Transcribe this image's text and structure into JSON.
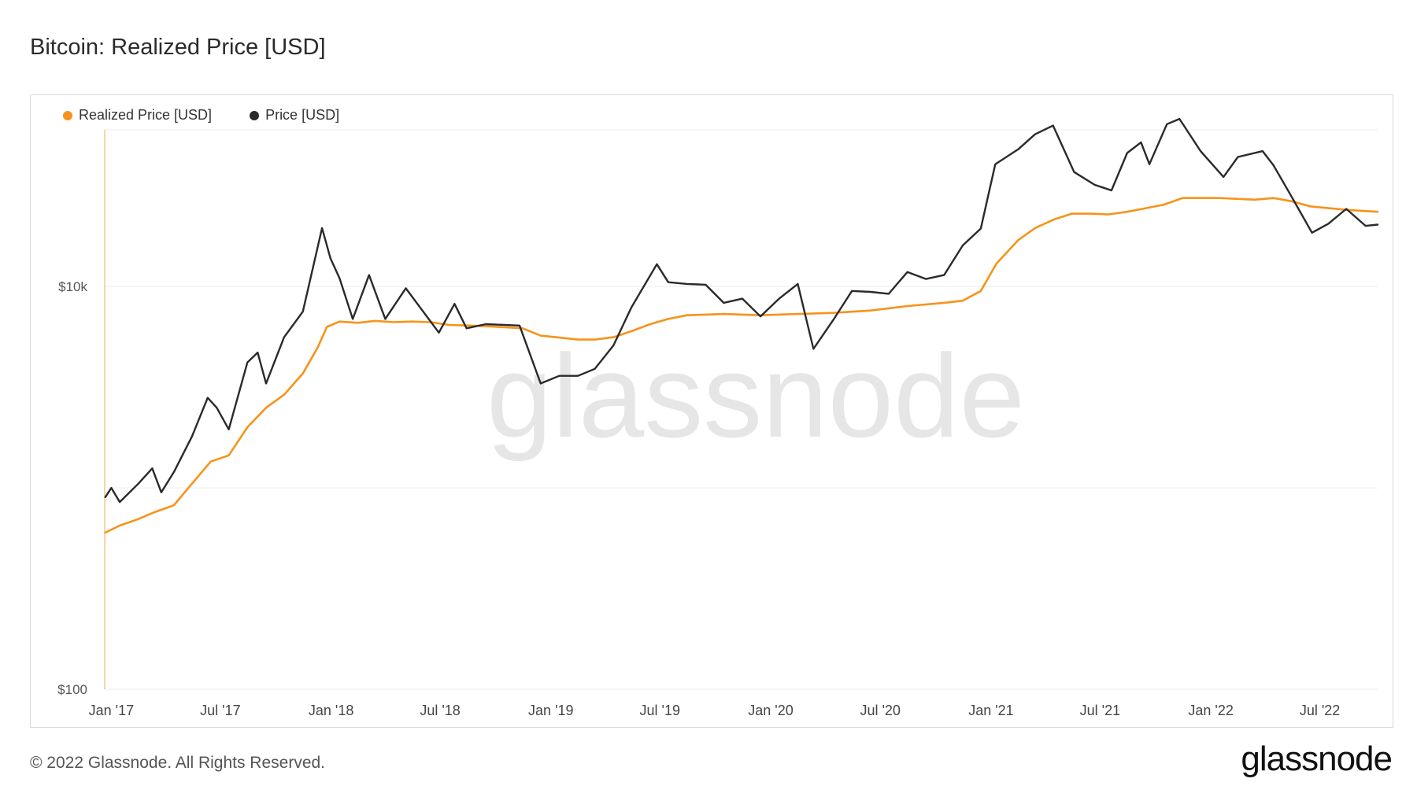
{
  "title": "Bitcoin: Realized Price [USD]",
  "watermark": "glassnode",
  "footer": "© 2022 Glassnode. All Rights Reserved.",
  "brand": "glassnode",
  "colors": {
    "realized": "#f7931a",
    "price": "#2a2a2a",
    "grid": "#eeeeee",
    "axis": "#f3c98a"
  },
  "chart_data": {
    "type": "line",
    "yscale": "log",
    "ylim": [
      100,
      60000
    ],
    "ytick_labels": [
      "$100",
      "$10k"
    ],
    "yticks": [
      100,
      10000
    ],
    "xlim": [
      "2016-12-21",
      "2022-10-05"
    ],
    "x_tick_labels": [
      "Jan '17",
      "Jul '17",
      "Jan '18",
      "Jul '18",
      "Jan '19",
      "Jul '19",
      "Jan '20",
      "Jul '20",
      "Jan '21",
      "Jul '21",
      "Jan '22",
      "Jul '22"
    ],
    "x_ticks": [
      "2017-01-01",
      "2017-07-01",
      "2018-01-01",
      "2018-07-01",
      "2019-01-01",
      "2019-07-01",
      "2020-01-01",
      "2020-07-01",
      "2021-01-01",
      "2021-07-01",
      "2022-01-01",
      "2022-07-01"
    ],
    "legend_position": "top-left",
    "series": [
      {
        "name": "Realized Price [USD]",
        "color": "#f7931a",
        "points": [
          [
            "2016-12-22",
            600
          ],
          [
            "2017-01-15",
            650
          ],
          [
            "2017-02-15",
            700
          ],
          [
            "2017-03-15",
            760
          ],
          [
            "2017-04-15",
            820
          ],
          [
            "2017-05-15",
            1050
          ],
          [
            "2017-06-15",
            1350
          ],
          [
            "2017-07-15",
            1450
          ],
          [
            "2017-08-15",
            2000
          ],
          [
            "2017-09-15",
            2500
          ],
          [
            "2017-10-15",
            2900
          ],
          [
            "2017-11-15",
            3700
          ],
          [
            "2017-12-10",
            5000
          ],
          [
            "2017-12-25",
            6300
          ],
          [
            "2018-01-15",
            6700
          ],
          [
            "2018-02-15",
            6600
          ],
          [
            "2018-03-15",
            6750
          ],
          [
            "2018-04-15",
            6650
          ],
          [
            "2018-05-15",
            6700
          ],
          [
            "2018-06-15",
            6650
          ],
          [
            "2018-07-15",
            6450
          ],
          [
            "2018-09-15",
            6350
          ],
          [
            "2018-11-15",
            6200
          ],
          [
            "2018-12-15",
            5700
          ],
          [
            "2019-02-15",
            5450
          ],
          [
            "2019-03-15",
            5450
          ],
          [
            "2019-04-15",
            5600
          ],
          [
            "2019-05-15",
            6000
          ],
          [
            "2019-06-15",
            6500
          ],
          [
            "2019-07-15",
            6900
          ],
          [
            "2019-08-15",
            7200
          ],
          [
            "2019-10-15",
            7300
          ],
          [
            "2019-12-15",
            7200
          ],
          [
            "2020-02-15",
            7300
          ],
          [
            "2020-04-15",
            7400
          ],
          [
            "2020-06-15",
            7600
          ],
          [
            "2020-08-15",
            8000
          ],
          [
            "2020-10-15",
            8300
          ],
          [
            "2020-11-15",
            8500
          ],
          [
            "2020-12-15",
            9500
          ],
          [
            "2021-01-10",
            13000
          ],
          [
            "2021-02-15",
            17000
          ],
          [
            "2021-03-15",
            19500
          ],
          [
            "2021-04-15",
            21500
          ],
          [
            "2021-05-15",
            23000
          ],
          [
            "2021-06-15",
            23000
          ],
          [
            "2021-07-15",
            22800
          ],
          [
            "2021-08-15",
            23500
          ],
          [
            "2021-09-15",
            24500
          ],
          [
            "2021-10-15",
            25500
          ],
          [
            "2021-11-15",
            27500
          ],
          [
            "2022-01-15",
            27500
          ],
          [
            "2022-03-15",
            27000
          ],
          [
            "2022-04-15",
            27500
          ],
          [
            "2022-05-15",
            26500
          ],
          [
            "2022-06-15",
            25000
          ],
          [
            "2022-08-15",
            24000
          ],
          [
            "2022-10-05",
            23500
          ]
        ]
      },
      {
        "name": "Price [USD]",
        "color": "#2a2a2a",
        "points": [
          [
            "2016-12-22",
            900
          ],
          [
            "2017-01-01",
            1000
          ],
          [
            "2017-01-15",
            850
          ],
          [
            "2017-02-15",
            1050
          ],
          [
            "2017-03-10",
            1250
          ],
          [
            "2017-03-25",
            950
          ],
          [
            "2017-04-15",
            1200
          ],
          [
            "2017-05-15",
            1800
          ],
          [
            "2017-06-10",
            2800
          ],
          [
            "2017-06-25",
            2500
          ],
          [
            "2017-07-15",
            1950
          ],
          [
            "2017-08-15",
            4200
          ],
          [
            "2017-09-01",
            4700
          ],
          [
            "2017-09-15",
            3300
          ],
          [
            "2017-10-15",
            5600
          ],
          [
            "2017-11-15",
            7500
          ],
          [
            "2017-12-17",
            19500
          ],
          [
            "2017-12-31",
            13800
          ],
          [
            "2018-01-15",
            11000
          ],
          [
            "2018-02-06",
            6900
          ],
          [
            "2018-03-05",
            11400
          ],
          [
            "2018-04-01",
            6900
          ],
          [
            "2018-05-05",
            9800
          ],
          [
            "2018-06-29",
            5900
          ],
          [
            "2018-07-25",
            8200
          ],
          [
            "2018-08-14",
            6200
          ],
          [
            "2018-09-15",
            6500
          ],
          [
            "2018-11-10",
            6400
          ],
          [
            "2018-12-15",
            3300
          ],
          [
            "2019-01-15",
            3600
          ],
          [
            "2019-02-15",
            3600
          ],
          [
            "2019-03-15",
            3900
          ],
          [
            "2019-04-15",
            5100
          ],
          [
            "2019-05-15",
            7900
          ],
          [
            "2019-06-26",
            12900
          ],
          [
            "2019-07-15",
            10500
          ],
          [
            "2019-08-15",
            10300
          ],
          [
            "2019-09-15",
            10200
          ],
          [
            "2019-10-15",
            8300
          ],
          [
            "2019-11-15",
            8700
          ],
          [
            "2019-12-15",
            7100
          ],
          [
            "2020-01-15",
            8700
          ],
          [
            "2020-02-15",
            10300
          ],
          [
            "2020-03-12",
            4900
          ],
          [
            "2020-04-15",
            6900
          ],
          [
            "2020-05-15",
            9500
          ],
          [
            "2020-06-15",
            9400
          ],
          [
            "2020-07-15",
            9200
          ],
          [
            "2020-08-15",
            11800
          ],
          [
            "2020-09-15",
            10900
          ],
          [
            "2020-10-15",
            11400
          ],
          [
            "2020-11-15",
            16000
          ],
          [
            "2020-12-15",
            19400
          ],
          [
            "2021-01-08",
            40500
          ],
          [
            "2021-02-15",
            48000
          ],
          [
            "2021-03-15",
            57000
          ],
          [
            "2021-04-14",
            63000
          ],
          [
            "2021-05-19",
            37000
          ],
          [
            "2021-06-22",
            32000
          ],
          [
            "2021-07-20",
            30000
          ],
          [
            "2021-08-15",
            46000
          ],
          [
            "2021-09-07",
            52000
          ],
          [
            "2021-09-21",
            40500
          ],
          [
            "2021-10-20",
            64000
          ],
          [
            "2021-11-10",
            68000
          ],
          [
            "2021-12-15",
            47000
          ],
          [
            "2022-01-22",
            35000
          ],
          [
            "2022-02-15",
            44000
          ],
          [
            "2022-03-28",
            47000
          ],
          [
            "2022-04-15",
            40000
          ],
          [
            "2022-05-12",
            29000
          ],
          [
            "2022-06-18",
            18500
          ],
          [
            "2022-07-15",
            20500
          ],
          [
            "2022-08-14",
            24300
          ],
          [
            "2022-09-15",
            20000
          ],
          [
            "2022-10-05",
            20300
          ]
        ]
      }
    ]
  }
}
